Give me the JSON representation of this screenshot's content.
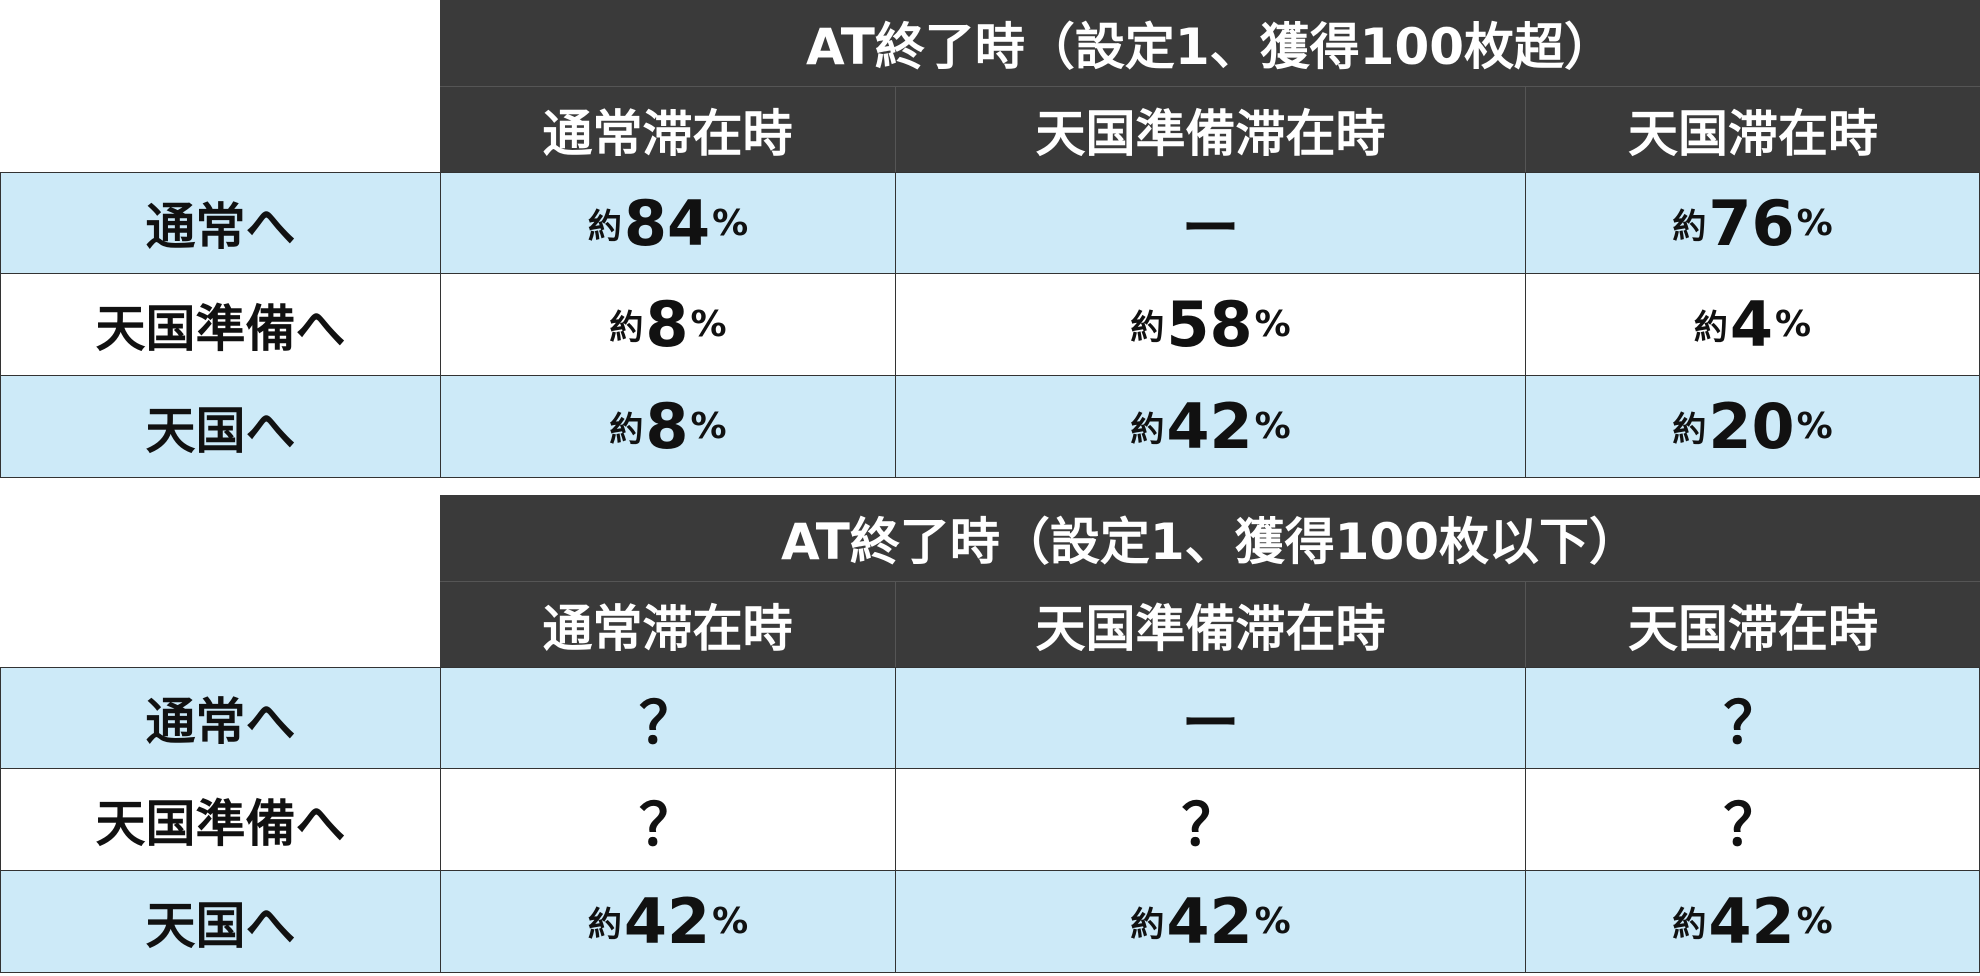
{
  "table1": {
    "title": "AT終了時（設定1、獲得100枚超）",
    "headers": [
      "通常滞在時",
      "天国準備滞在時",
      "天国滞在時"
    ],
    "rows": [
      {
        "label": "通常へ",
        "cells": [
          {
            "pre": "約",
            "num": "84",
            "suf": "%"
          },
          {
            "plain": "ー"
          },
          {
            "pre": "約",
            "num": "76",
            "suf": "%"
          }
        ]
      },
      {
        "label": "天国準備へ",
        "cells": [
          {
            "pre": "約",
            "num": "8",
            "suf": "%"
          },
          {
            "pre": "約",
            "num": "58",
            "suf": "%"
          },
          {
            "pre": "約",
            "num": "4",
            "suf": "%"
          }
        ]
      },
      {
        "label": "天国へ",
        "cells": [
          {
            "pre": "約",
            "num": "8",
            "suf": "%"
          },
          {
            "pre": "約",
            "num": "42",
            "suf": "%"
          },
          {
            "pre": "約",
            "num": "20",
            "suf": "%"
          }
        ]
      }
    ]
  },
  "table2": {
    "title": "AT終了時（設定1、獲得100枚以下）",
    "headers": [
      "通常滞在時",
      "天国準備滞在時",
      "天国滞在時"
    ],
    "rows": [
      {
        "label": "通常へ",
        "cells": [
          {
            "plain": "？"
          },
          {
            "plain": "ー"
          },
          {
            "plain": "？"
          }
        ]
      },
      {
        "label": "天国準備へ",
        "cells": [
          {
            "plain": "？"
          },
          {
            "plain": "？"
          },
          {
            "plain": "？"
          }
        ]
      },
      {
        "label": "天国へ",
        "cells": [
          {
            "pre": "約",
            "num": "42",
            "suf": "%"
          },
          {
            "pre": "約",
            "num": "42",
            "suf": "%"
          },
          {
            "pre": "約",
            "num": "42",
            "suf": "%"
          }
        ]
      }
    ]
  },
  "colors": {
    "header_bg": "#3a3a3a",
    "row_blue": "#cdeaf8",
    "row_white": "#ffffff",
    "text": "#111111"
  }
}
